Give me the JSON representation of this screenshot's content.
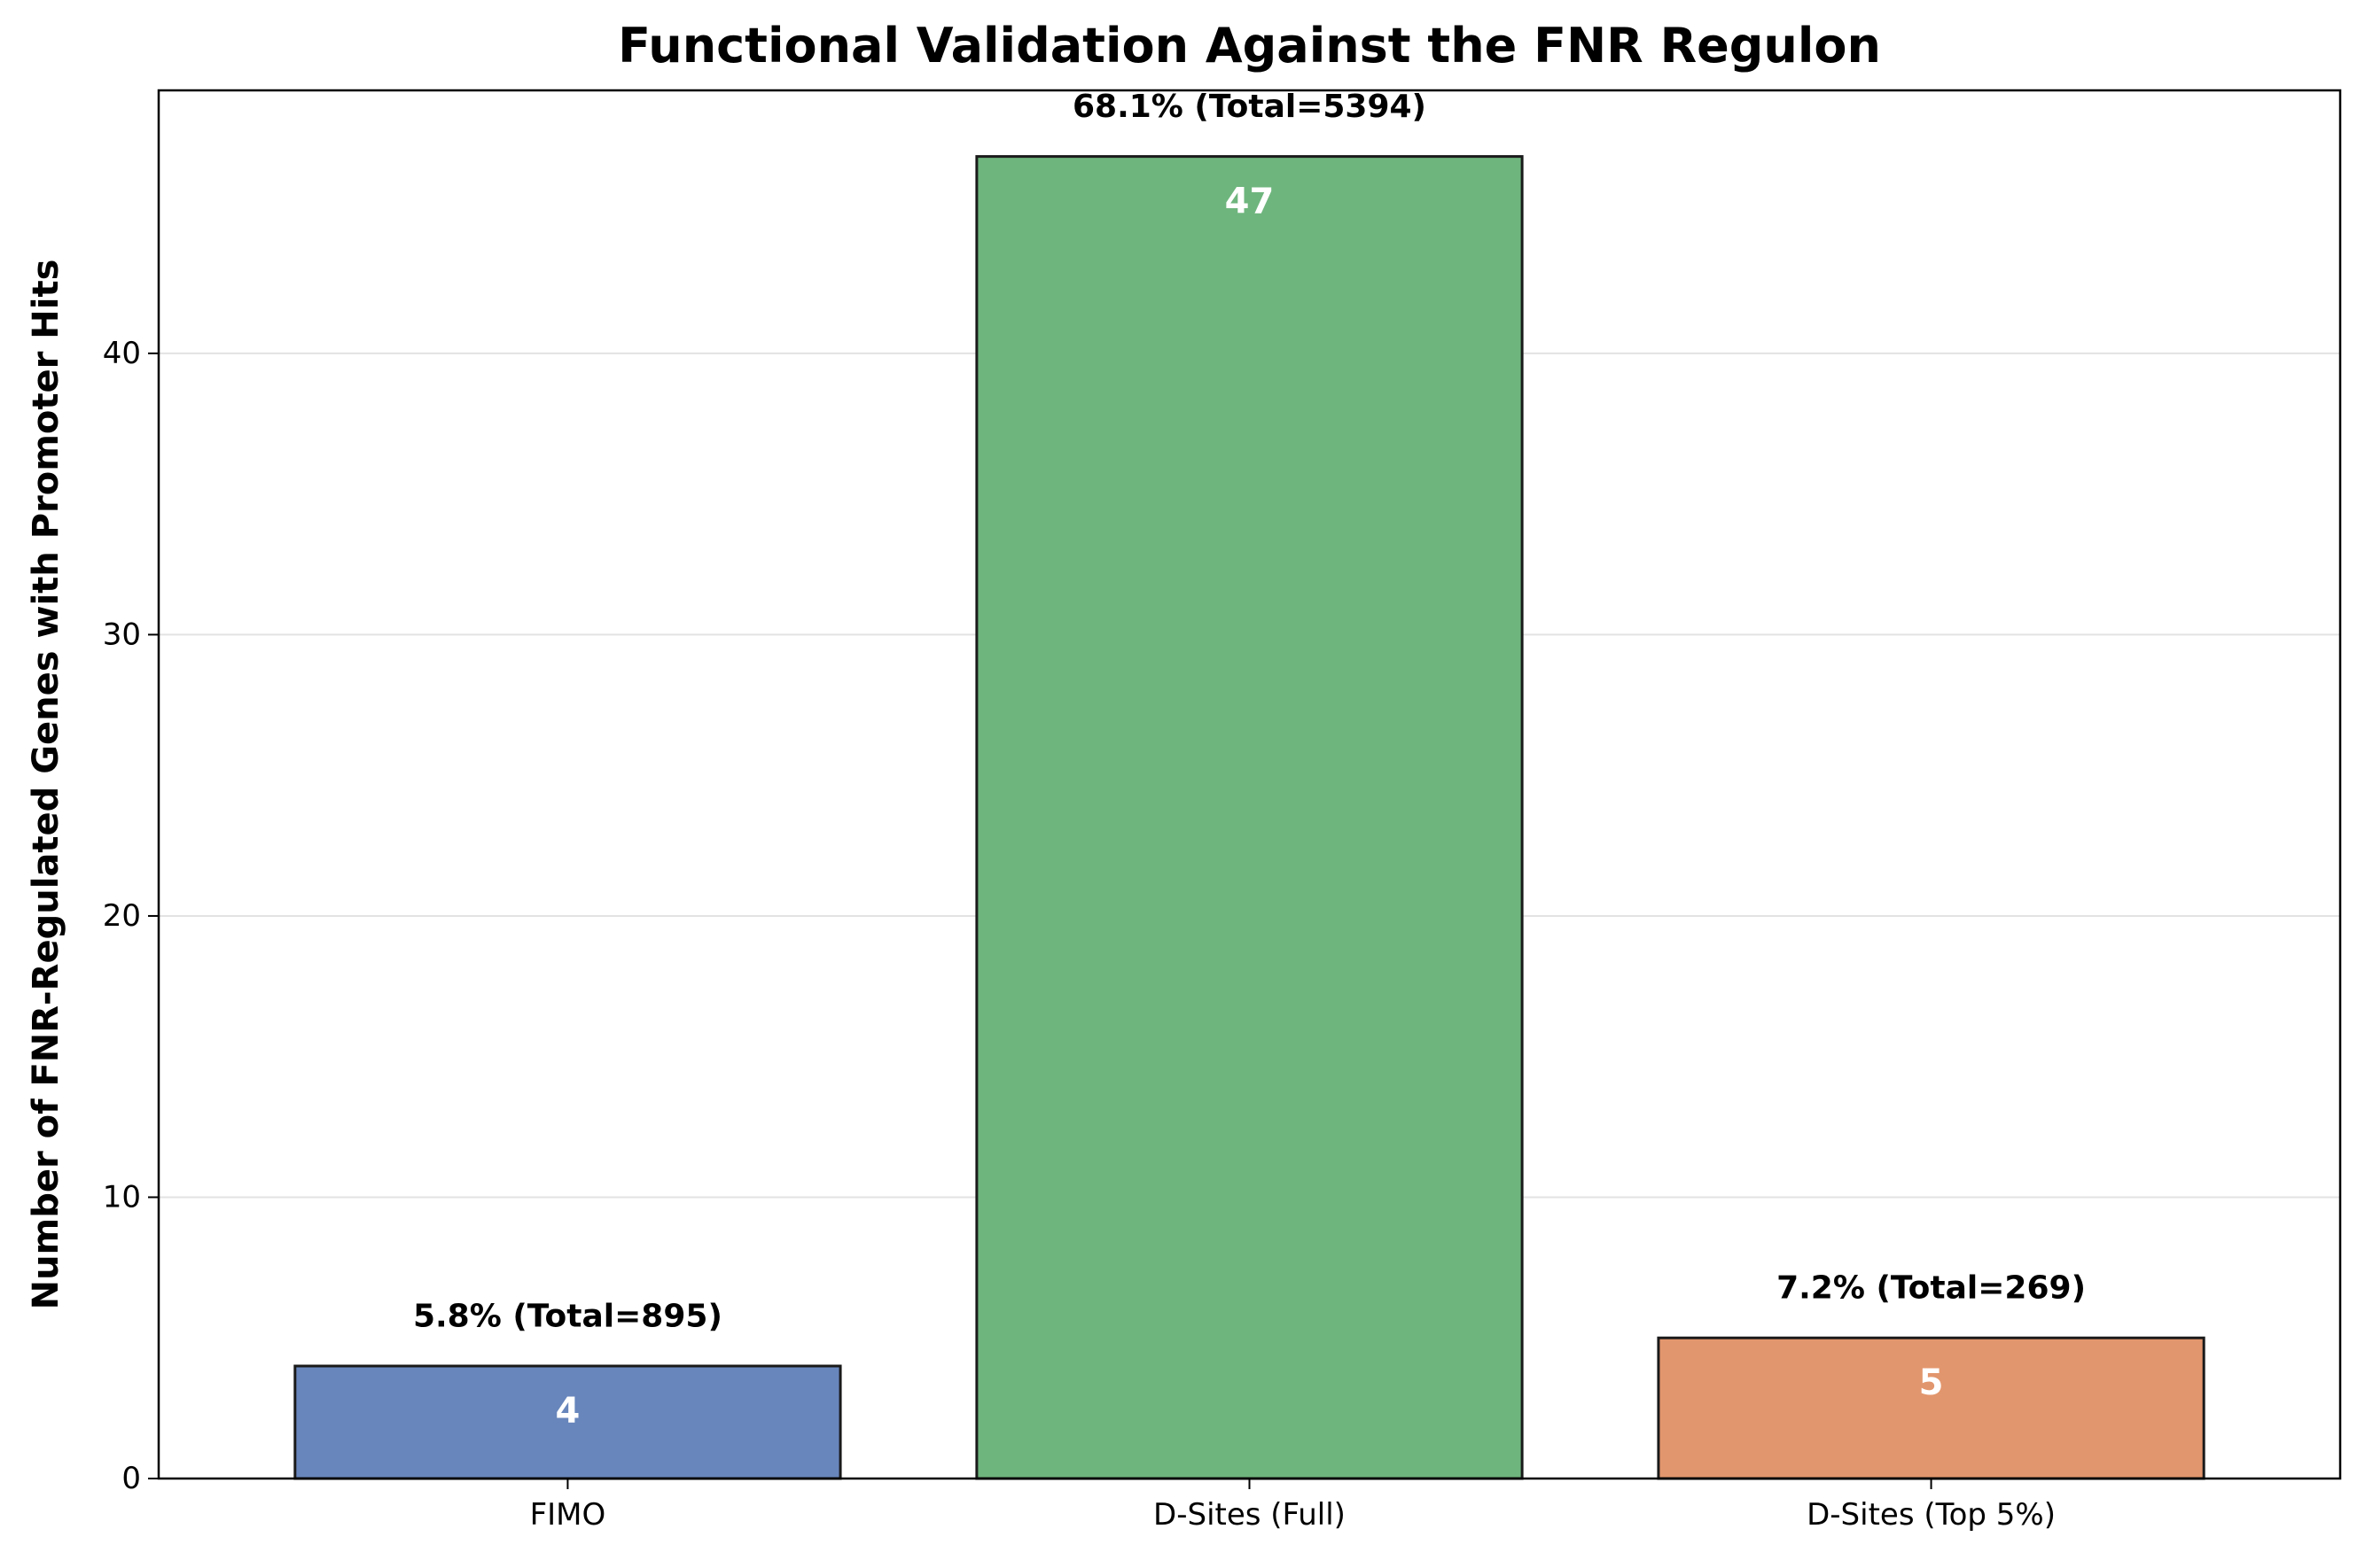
{
  "chart_data": {
    "type": "bar",
    "title": "Functional Validation Against the FNR Regulon",
    "xlabel": "",
    "ylabel": "Number of FNR-Regulated Genes with Promoter Hits",
    "categories": [
      "FIMO",
      "D-Sites (Full)",
      "D-Sites (Top 5%)"
    ],
    "values": [
      4,
      47,
      5
    ],
    "value_labels": [
      "4",
      "47",
      "5"
    ],
    "annotations": [
      "5.8% (Total=895)",
      "68.1% (Total=5394)",
      "7.2% (Total=269)"
    ],
    "colors": [
      "#6886bc",
      "#6eb57d",
      "#e2966d"
    ],
    "ylim": [
      0,
      49.35
    ],
    "yticks": [
      0,
      10,
      20,
      30,
      40
    ],
    "ytick_labels": [
      "0",
      "10",
      "20",
      "30",
      "40"
    ],
    "grid": "horizontal",
    "legend": "none"
  }
}
